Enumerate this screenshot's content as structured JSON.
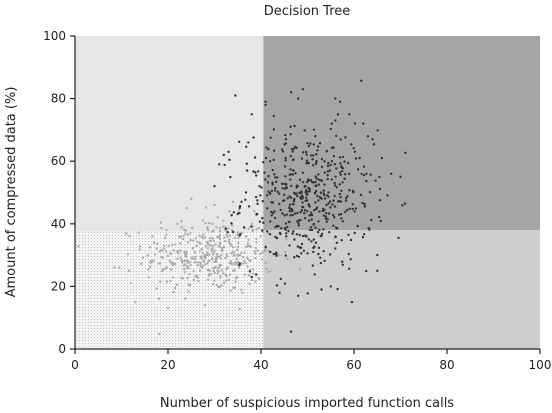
{
  "chart_data": {
    "type": "scatter",
    "title": "Decision Tree",
    "xlabel": "Number of suspicious imported function calls",
    "ylabel": "Amount of compressed data (%)",
    "xlim": [
      0,
      100
    ],
    "ylim": [
      0,
      100
    ],
    "xticks": [
      0,
      20,
      40,
      60,
      80,
      100
    ],
    "yticks": [
      0,
      20,
      40,
      60,
      80,
      100
    ],
    "grid": false,
    "regions": [
      {
        "x": [
          0,
          40.5
        ],
        "y": [
          37.5,
          100
        ],
        "color": "#e6e6e6"
      },
      {
        "x": [
          0,
          40.5
        ],
        "y": [
          0,
          37.5
        ],
        "color": "#f3f3f3",
        "pattern": "dotted"
      },
      {
        "x": [
          40.5,
          100
        ],
        "y": [
          38,
          100
        ],
        "color": "#a5a5a5"
      },
      {
        "x": [
          40.5,
          100
        ],
        "y": [
          0,
          38
        ],
        "color": "#cecece"
      }
    ],
    "series": [
      {
        "marker_color": "#aaaaaa",
        "cluster": {
          "x_mean": 29,
          "x_sd": 7,
          "y_mean": 30,
          "y_sd": 6,
          "n": 400
        },
        "points": [
          [
            8.5,
            26
          ],
          [
            9.5,
            26
          ],
          [
            12,
            21
          ],
          [
            13,
            15
          ],
          [
            17,
            34
          ],
          [
            22,
            40
          ],
          [
            24,
            45
          ],
          [
            25,
            48
          ],
          [
            30,
            46
          ],
          [
            34,
            47
          ],
          [
            35,
            43
          ],
          [
            38,
            40
          ],
          [
            38,
            22
          ],
          [
            36,
            18
          ],
          [
            28,
            14
          ],
          [
            20,
            13
          ],
          [
            44,
            30
          ]
        ]
      },
      {
        "marker_color": "#333333",
        "cluster": {
          "x_mean": 50,
          "x_sd": 7,
          "y_mean": 48,
          "y_sd": 11,
          "n": 500
        },
        "points": [
          [
            34.5,
            81
          ],
          [
            38,
            75
          ],
          [
            41,
            78
          ],
          [
            41,
            79
          ],
          [
            46.5,
            82
          ],
          [
            49,
            83
          ],
          [
            48,
            80
          ],
          [
            56,
            80
          ],
          [
            57,
            79
          ],
          [
            59,
            75
          ],
          [
            62,
            72
          ],
          [
            64,
            67
          ],
          [
            63,
            68
          ],
          [
            66,
            61
          ],
          [
            68,
            56
          ],
          [
            70,
            55
          ],
          [
            65,
            30
          ],
          [
            65,
            25
          ],
          [
            55,
            20
          ],
          [
            53,
            19
          ],
          [
            48,
            17
          ],
          [
            44,
            18
          ],
          [
            38,
            23
          ],
          [
            32,
            62
          ],
          [
            33,
            63
          ],
          [
            31,
            59
          ],
          [
            30,
            52
          ],
          [
            37,
            57
          ],
          [
            42,
            31
          ],
          [
            39,
            43
          ]
        ]
      }
    ]
  }
}
